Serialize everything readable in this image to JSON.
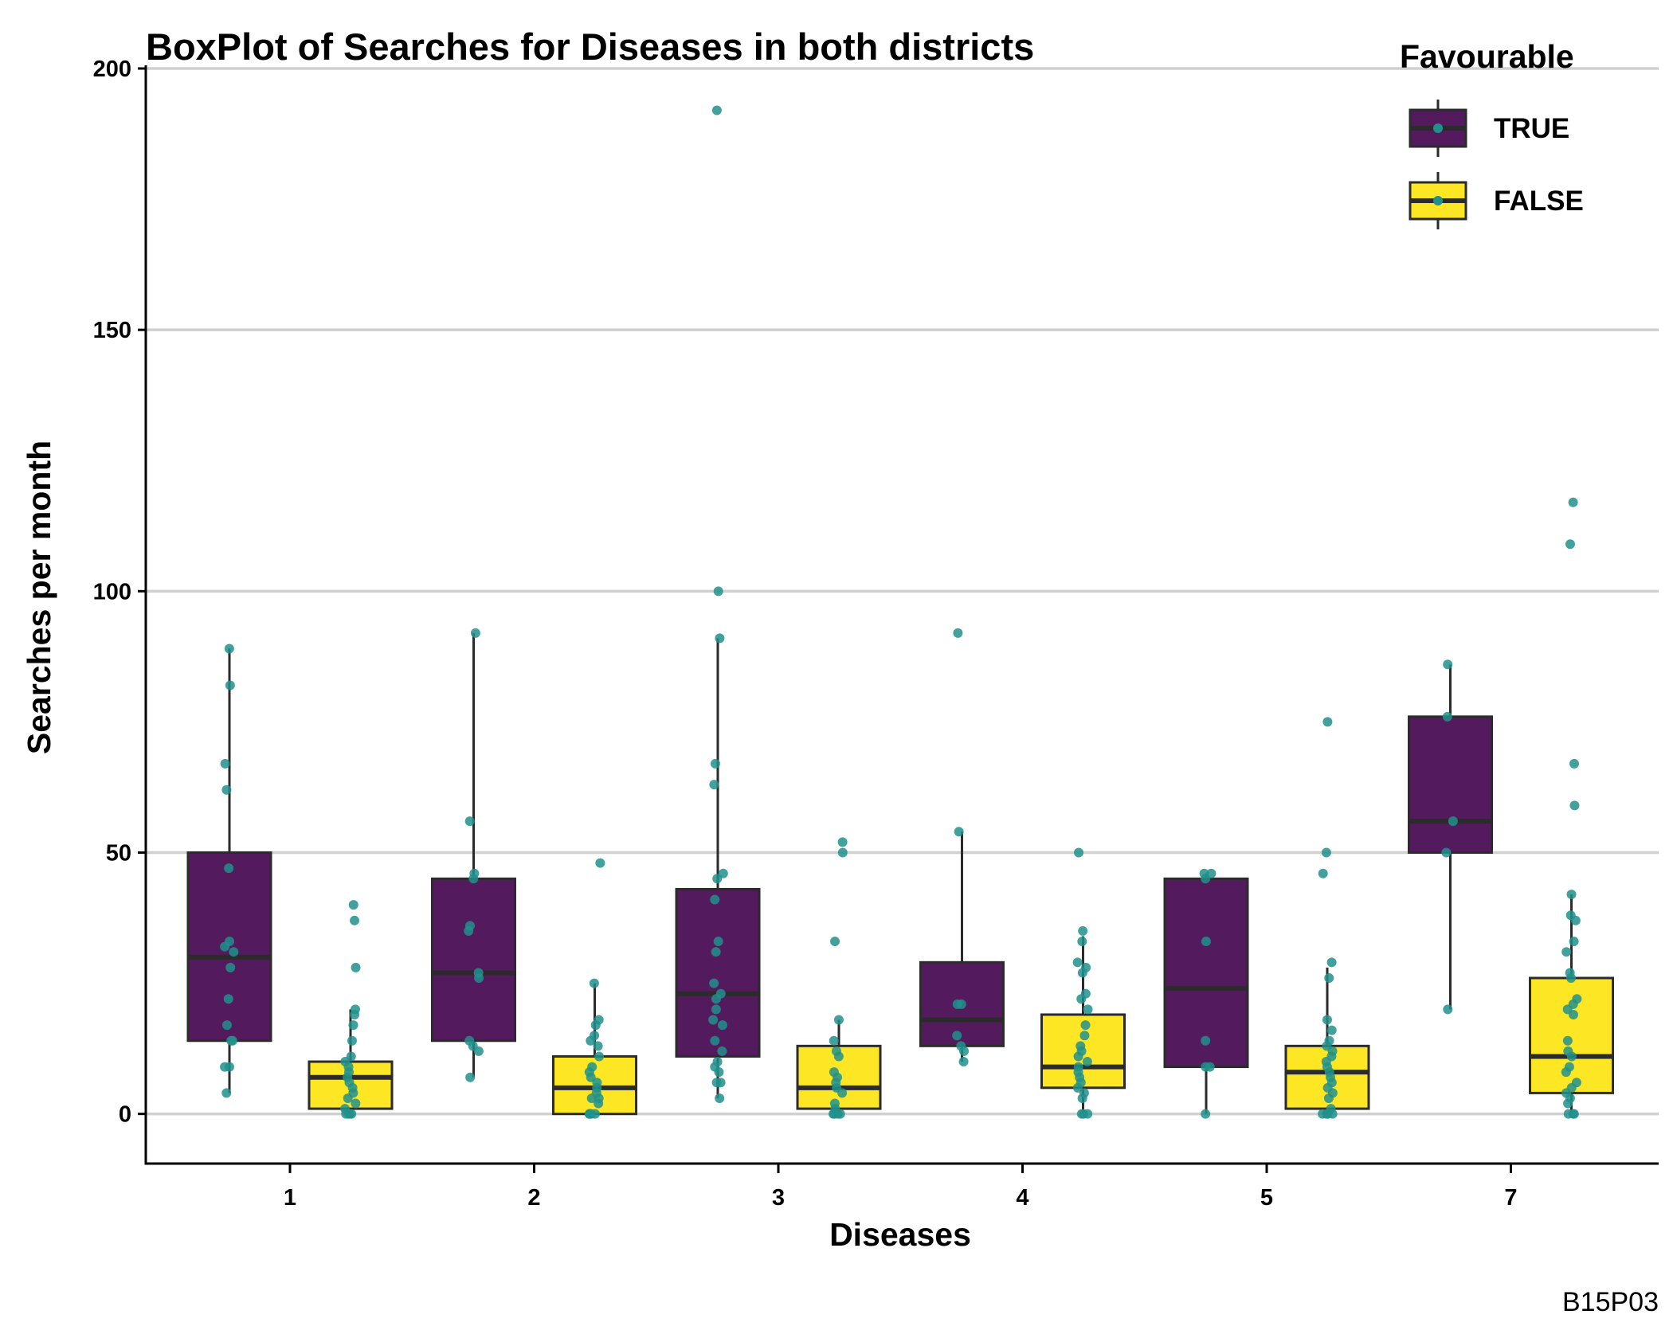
{
  "chart_data": {
    "type": "boxplot",
    "title": "BoxPlot of Searches for Diseases in both districts",
    "xlabel": "Diseases",
    "ylabel": "Searches per month",
    "caption": "B15P03",
    "categories": [
      "1",
      "2",
      "3",
      "4",
      "5",
      "7"
    ],
    "ylim": [
      -9.5,
      200
    ],
    "yticks": [
      0,
      50,
      100,
      150,
      200
    ],
    "grid": "horizontal major",
    "legend": {
      "title": "Favourable",
      "placement": "top-right",
      "entries": [
        {
          "label": "TRUE",
          "color": "#541a5e"
        },
        {
          "label": "FALSE",
          "color": "#fde725"
        }
      ]
    },
    "point_color": "#21908c",
    "series": [
      {
        "name": "TRUE",
        "color": "#541a5e",
        "boxes": [
          {
            "category": "1",
            "whisker_low": 4,
            "q1": 14,
            "median": 30,
            "q3": 50,
            "whisker_high": 89
          },
          {
            "category": "2",
            "whisker_low": 7,
            "q1": 14,
            "median": 27,
            "q3": 45,
            "whisker_high": 92
          },
          {
            "category": "3",
            "whisker_low": 3,
            "q1": 11,
            "median": 23,
            "q3": 43,
            "whisker_high": 91
          },
          {
            "category": "4",
            "whisker_low": 10,
            "q1": 13,
            "median": 18,
            "q3": 29,
            "whisker_high": 54
          },
          {
            "category": "5",
            "whisker_low": 0,
            "q1": 9,
            "median": 24,
            "q3": 45,
            "whisker_high": 46
          },
          {
            "category": "7",
            "whisker_low": 20,
            "q1": 50,
            "median": 56,
            "q3": 76,
            "whisker_high": 86
          }
        ],
        "points": [
          {
            "category": "1",
            "values": [
              89,
              82,
              67,
              62,
              47,
              33,
              32,
              31,
              28,
              22,
              17,
              14,
              14,
              9,
              9,
              4
            ]
          },
          {
            "category": "2",
            "values": [
              92,
              56,
              46,
              45,
              36,
              35,
              27,
              26,
              14,
              13,
              12,
              7
            ]
          },
          {
            "category": "3",
            "values": [
              192,
              100,
              91,
              67,
              63,
              46,
              45,
              41,
              33,
              31,
              25,
              23,
              22,
              20,
              18,
              17,
              14,
              12,
              10,
              9,
              8,
              6,
              6,
              3
            ]
          },
          {
            "category": "4",
            "values": [
              92,
              54,
              21,
              21,
              15,
              13,
              12,
              10
            ]
          },
          {
            "category": "5",
            "values": [
              46,
              46,
              45,
              33,
              14,
              9,
              9,
              0
            ]
          },
          {
            "category": "7",
            "values": [
              86,
              76,
              56,
              50,
              20
            ]
          }
        ]
      },
      {
        "name": "FALSE",
        "color": "#fde725",
        "boxes": [
          {
            "category": "1",
            "whisker_low": 0,
            "q1": 1,
            "median": 7,
            "q3": 10,
            "whisker_high": 20
          },
          {
            "category": "2",
            "whisker_low": 0,
            "q1": 0,
            "median": 5,
            "q3": 11,
            "whisker_high": 25
          },
          {
            "category": "3",
            "whisker_low": 0,
            "q1": 1,
            "median": 5,
            "q3": 13,
            "whisker_high": 18
          },
          {
            "category": "4",
            "whisker_low": 0,
            "q1": 5,
            "median": 9,
            "q3": 19,
            "whisker_high": 34
          },
          {
            "category": "5",
            "whisker_low": 0,
            "q1": 1,
            "median": 8,
            "q3": 13,
            "whisker_high": 28
          },
          {
            "category": "7",
            "whisker_low": 0,
            "q1": 4,
            "median": 11,
            "q3": 26,
            "whisker_high": 42
          }
        ],
        "points": [
          {
            "category": "1",
            "values": [
              40,
              37,
              28,
              20,
              19,
              17,
              14,
              11,
              10,
              9,
              8,
              7,
              6,
              5,
              4,
              3,
              2,
              1,
              0,
              0,
              0,
              0
            ]
          },
          {
            "category": "2",
            "values": [
              48,
              25,
              18,
              17,
              15,
              14,
              13,
              11,
              9,
              8,
              7,
              6,
              5,
              4,
              3,
              3,
              2,
              0,
              0,
              0,
              0,
              0
            ]
          },
          {
            "category": "3",
            "values": [
              52,
              50,
              33,
              18,
              14,
              12,
              11,
              8,
              7,
              6,
              5,
              4,
              2,
              1,
              0,
              0,
              0,
              0
            ]
          },
          {
            "category": "4",
            "values": [
              50,
              35,
              33,
              29,
              28,
              27,
              23,
              22,
              20,
              17,
              15,
              13,
              12,
              11,
              10,
              9,
              8,
              7,
              6,
              5,
              4,
              3,
              0,
              0,
              0
            ]
          },
          {
            "category": "5",
            "values": [
              75,
              50,
              46,
              29,
              26,
              18,
              16,
              14,
              13,
              12,
              11,
              10,
              9,
              8,
              7,
              6,
              5,
              4,
              3,
              1,
              0,
              0,
              0,
              0
            ]
          },
          {
            "category": "7",
            "values": [
              117,
              109,
              67,
              59,
              42,
              38,
              37,
              33,
              31,
              27,
              26,
              22,
              21,
              20,
              19,
              14,
              12,
              11,
              9,
              8,
              6,
              5,
              4,
              3,
              2,
              0,
              0,
              0
            ]
          }
        ]
      }
    ]
  }
}
